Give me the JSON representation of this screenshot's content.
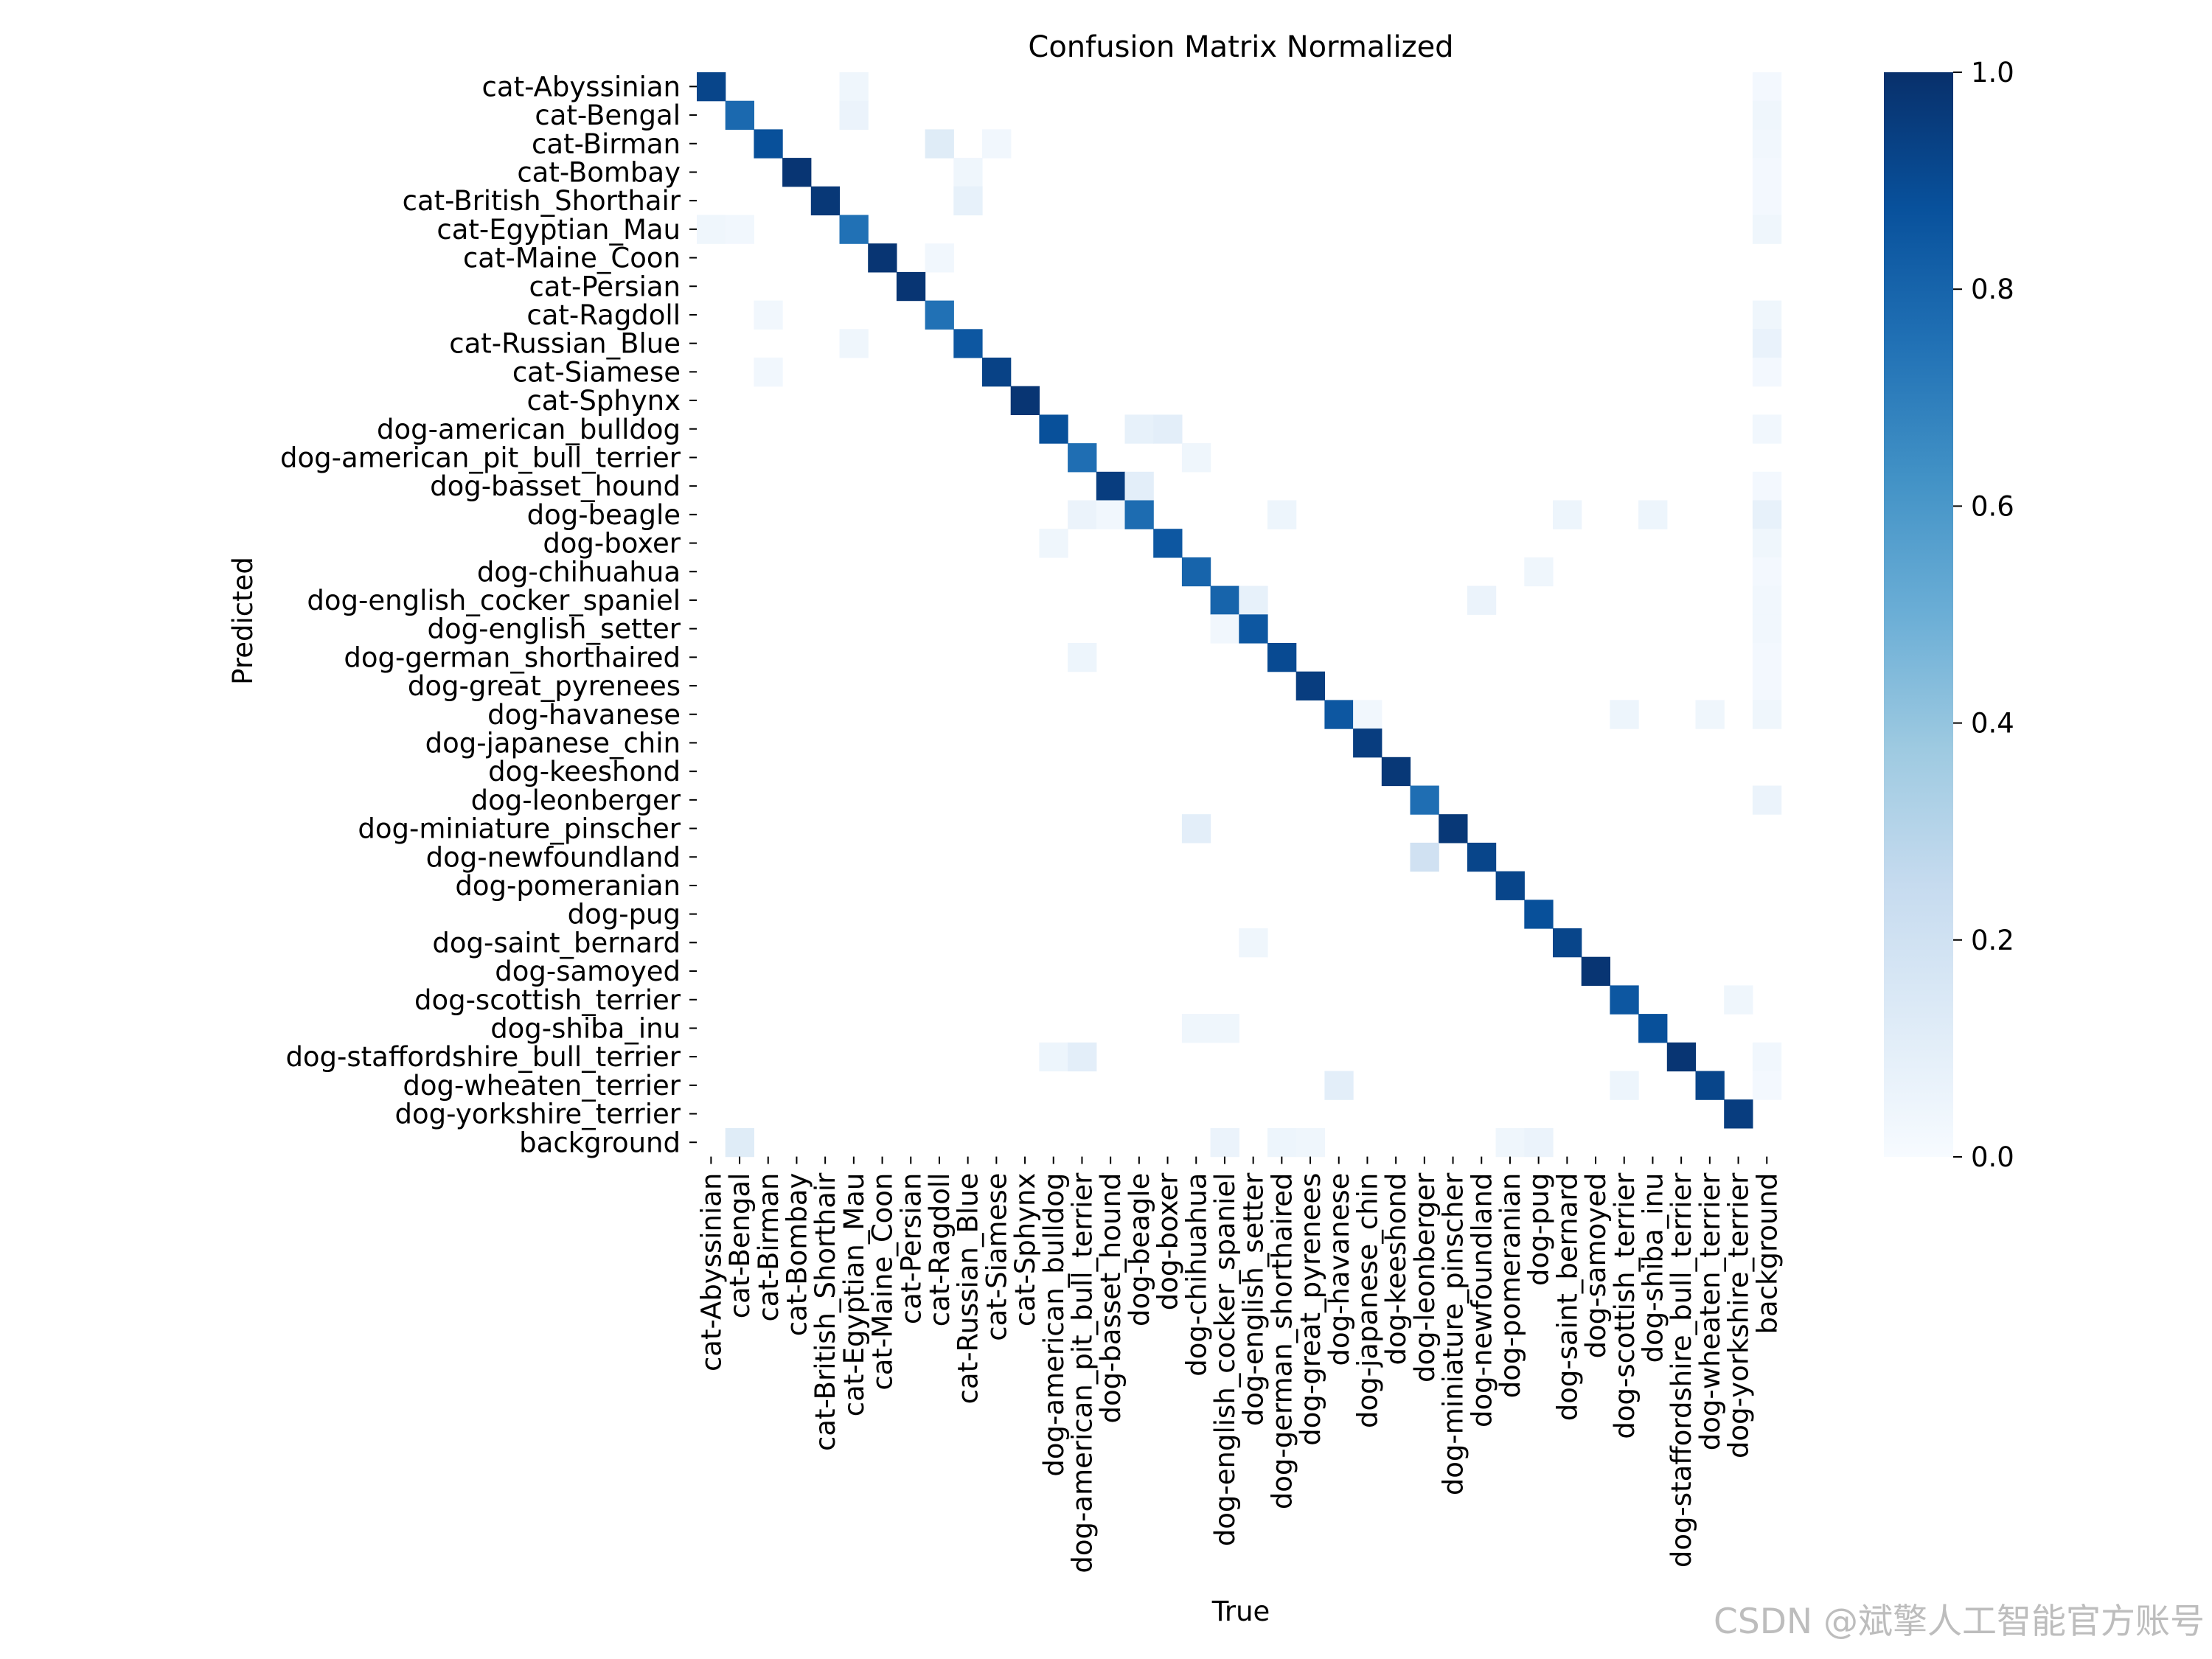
{
  "chart_data": {
    "type": "heatmap",
    "title": "Confusion Matrix Normalized",
    "xlabel": "True",
    "ylabel": "Predicted",
    "colormap": "Blues",
    "colors": {
      "low": "#f7fbff",
      "high": "#08306b"
    },
    "value_range": [
      0.0,
      1.0
    ],
    "colorbar_ticks": [
      0.0,
      0.2,
      0.4,
      0.6,
      0.8,
      1.0
    ],
    "colorbar_tick_labels": [
      "0.0",
      "0.2",
      "0.4",
      "0.6",
      "0.8",
      "1.0"
    ],
    "grid": false,
    "labels": [
      "cat-Abyssinian",
      "cat-Bengal",
      "cat-Birman",
      "cat-Bombay",
      "cat-British_Shorthair",
      "cat-Egyptian_Mau",
      "cat-Maine_Coon",
      "cat-Persian",
      "cat-Ragdoll",
      "cat-Russian_Blue",
      "cat-Siamese",
      "cat-Sphynx",
      "dog-american_bulldog",
      "dog-american_pit_bull_terrier",
      "dog-basset_hound",
      "dog-beagle",
      "dog-boxer",
      "dog-chihuahua",
      "dog-english_cocker_spaniel",
      "dog-english_setter",
      "dog-german_shorthaired",
      "dog-great_pyrenees",
      "dog-havanese",
      "dog-japanese_chin",
      "dog-keeshond",
      "dog-leonberger",
      "dog-miniature_pinscher",
      "dog-newfoundland",
      "dog-pomeranian",
      "dog-pug",
      "dog-saint_bernard",
      "dog-samoyed",
      "dog-scottish_terrier",
      "dog-shiba_inu",
      "dog-staffordshire_bull_terrier",
      "dog-wheaten_terrier",
      "dog-yorkshire_terrier",
      "background"
    ],
    "diagonal": [
      0.92,
      0.78,
      0.88,
      0.98,
      0.97,
      0.75,
      0.98,
      0.98,
      0.75,
      0.85,
      0.93,
      0.98,
      0.88,
      0.76,
      0.95,
      0.77,
      0.85,
      0.8,
      0.8,
      0.85,
      0.9,
      0.95,
      0.85,
      0.95,
      0.97,
      0.76,
      0.97,
      0.92,
      0.92,
      0.88,
      0.92,
      0.98,
      0.85,
      0.88,
      0.98,
      0.92,
      0.95,
      0.0
    ],
    "off_diagonal": [
      [
        0,
        5,
        0.04
      ],
      [
        0,
        37,
        0.02
      ],
      [
        1,
        5,
        0.06
      ],
      [
        1,
        37,
        0.04
      ],
      [
        2,
        8,
        0.12
      ],
      [
        2,
        10,
        0.03
      ],
      [
        2,
        37,
        0.03
      ],
      [
        3,
        9,
        0.04
      ],
      [
        3,
        37,
        0.02
      ],
      [
        4,
        9,
        0.08
      ],
      [
        4,
        37,
        0.02
      ],
      [
        5,
        0,
        0.04
      ],
      [
        5,
        1,
        0.03
      ],
      [
        5,
        37,
        0.04
      ],
      [
        6,
        8,
        0.03
      ],
      [
        8,
        2,
        0.03
      ],
      [
        8,
        37,
        0.04
      ],
      [
        9,
        5,
        0.04
      ],
      [
        9,
        37,
        0.07
      ],
      [
        10,
        2,
        0.03
      ],
      [
        10,
        37,
        0.02
      ],
      [
        12,
        15,
        0.08
      ],
      [
        12,
        16,
        0.1
      ],
      [
        12,
        37,
        0.03
      ],
      [
        13,
        17,
        0.04
      ],
      [
        14,
        15,
        0.1
      ],
      [
        14,
        37,
        0.02
      ],
      [
        15,
        13,
        0.06
      ],
      [
        15,
        14,
        0.03
      ],
      [
        15,
        20,
        0.05
      ],
      [
        15,
        30,
        0.05
      ],
      [
        15,
        33,
        0.05
      ],
      [
        15,
        37,
        0.08
      ],
      [
        16,
        12,
        0.04
      ],
      [
        16,
        37,
        0.04
      ],
      [
        17,
        29,
        0.04
      ],
      [
        17,
        37,
        0.02
      ],
      [
        18,
        19,
        0.08
      ],
      [
        18,
        27,
        0.06
      ],
      [
        18,
        37,
        0.03
      ],
      [
        19,
        18,
        0.03
      ],
      [
        19,
        37,
        0.03
      ],
      [
        20,
        13,
        0.05
      ],
      [
        20,
        37,
        0.02
      ],
      [
        21,
        37,
        0.02
      ],
      [
        22,
        23,
        0.03
      ],
      [
        22,
        32,
        0.05
      ],
      [
        22,
        35,
        0.04
      ],
      [
        22,
        37,
        0.04
      ],
      [
        25,
        37,
        0.06
      ],
      [
        26,
        17,
        0.1
      ],
      [
        27,
        25,
        0.2
      ],
      [
        30,
        19,
        0.04
      ],
      [
        32,
        36,
        0.04
      ],
      [
        33,
        17,
        0.04
      ],
      [
        33,
        18,
        0.04
      ],
      [
        34,
        12,
        0.05
      ],
      [
        34,
        13,
        0.1
      ],
      [
        34,
        37,
        0.03
      ],
      [
        35,
        22,
        0.1
      ],
      [
        35,
        32,
        0.05
      ],
      [
        35,
        37,
        0.02
      ],
      [
        37,
        1,
        0.12
      ],
      [
        37,
        18,
        0.06
      ],
      [
        37,
        20,
        0.05
      ],
      [
        37,
        21,
        0.04
      ],
      [
        37,
        28,
        0.04
      ],
      [
        37,
        29,
        0.06
      ]
    ]
  },
  "watermark": "CSDN @斌擎人工智能官方账号"
}
